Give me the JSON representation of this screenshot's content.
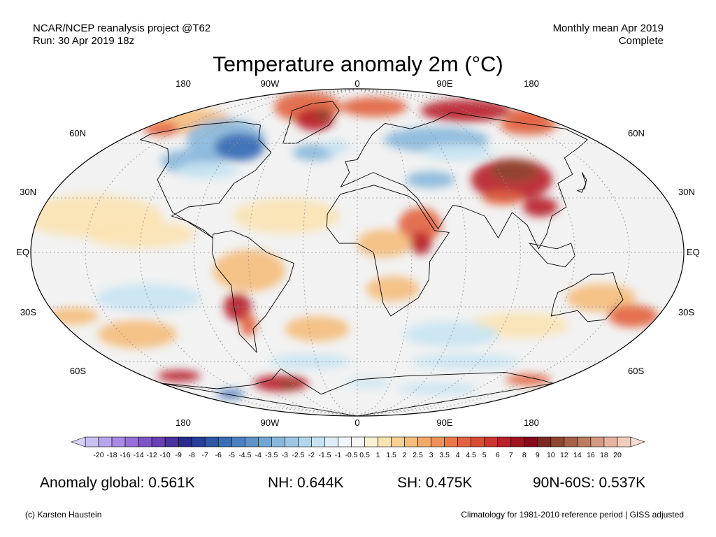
{
  "header": {
    "source_line1": "NCAR/NCEP reanalysis project @T62",
    "source_line2": "Run: 30 Apr 2019 18z",
    "period_line1": "Monthly mean Apr 2019",
    "period_line2": "Complete"
  },
  "title": "Temperature anomaly 2m (°C)",
  "axes": {
    "lon_top": [
      "180",
      "90W",
      "0",
      "90E",
      "180"
    ],
    "lon_bottom": [
      "180",
      "90W",
      "0",
      "90E",
      "180"
    ],
    "lat_left": [
      "60N",
      "30N",
      "EQ",
      "30S",
      "60S"
    ],
    "lat_right": [
      "60N",
      "30N",
      "EQ",
      "30S",
      "60S"
    ]
  },
  "colorbar": {
    "labels": [
      "-20",
      "-18",
      "-16",
      "-14",
      "-12",
      "-10",
      "-9",
      "-8",
      "-7",
      "-6",
      "-5",
      "-4.5",
      "-4",
      "-3.5",
      "-3",
      "-2.5",
      "-2",
      "-1.5",
      "-1",
      "-0.5",
      "0.5",
      "1",
      "1.5",
      "2",
      "2.5",
      "3",
      "3.5",
      "4",
      "4.5",
      "5",
      "6",
      "7",
      "8",
      "9",
      "10",
      "12",
      "14",
      "16",
      "18",
      "20"
    ],
    "colors": [
      "#c8c0f0",
      "#b8a6ec",
      "#a88ae2",
      "#9670d8",
      "#7e55c6",
      "#6640b4",
      "#4a30a0",
      "#2a2a8c",
      "#283e9a",
      "#2f57a8",
      "#3a6db5",
      "#4a80bf",
      "#5d93c9",
      "#72a6d3",
      "#88b8dc",
      "#9dc7e4",
      "#b2d6eb",
      "#c8e4f2",
      "#dceef8",
      "#f0f6fb",
      "#f5f5f5",
      "#fdf0d2",
      "#fbe3b2",
      "#f8d193",
      "#f5bd7c",
      "#f2a869",
      "#ee9259",
      "#e9794a",
      "#e2623f",
      "#d94c36",
      "#cc3630",
      "#b8202a",
      "#a01422",
      "#860a1a",
      "#7a2a20",
      "#8e4630",
      "#a66048",
      "#bc7c62",
      "#d49a82",
      "#e6b4a0",
      "#f2cdbd"
    ]
  },
  "stats": {
    "global": "Anomaly global: 0.561K",
    "nh": "NH: 0.644K",
    "sh": "SH: 0.475K",
    "polar": "90N-60S: 0.537K"
  },
  "footer": {
    "credit": "(c) Karsten Haustein",
    "note": "Climatology for 1981-2010 reference period | GISS adjusted"
  },
  "map_colors": {
    "background": "#f2f2f2",
    "ocean_warm": "#fbe3b2",
    "warm": "#f5bd7c",
    "hot": "#e2623f",
    "very_hot": "#b8202a",
    "extreme_hot": "#8e4630",
    "cool": "#c8e4f2",
    "cold": "#88b8dc",
    "very_cold": "#3a6db5",
    "coast": "#000000",
    "grid": "#909090"
  }
}
